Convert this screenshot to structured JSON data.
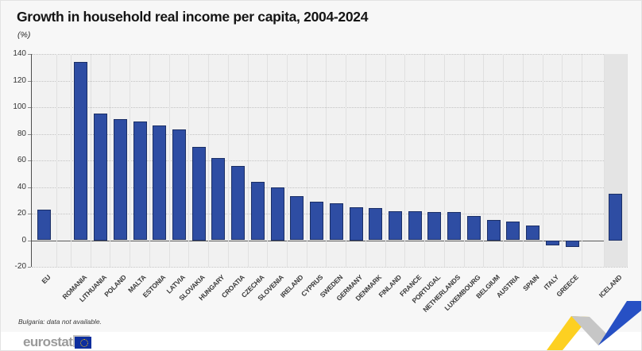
{
  "header": {
    "title": "Growth in household real income per capita, 2004-2024",
    "unit": "(%)"
  },
  "chart_data": {
    "type": "bar",
    "title": "Growth in household real income per capita, 2004-2024",
    "ylabel": "(%)",
    "ylim": [
      -20,
      140
    ],
    "ytick_step": 20,
    "grid": "horizontal-dotted",
    "legend": "none",
    "bar_color": "#2e4da3",
    "bar_border_color": "#1b2f66",
    "highlight_band_color": "#e4e4e4",
    "categories": [
      "EU",
      "ROMANIA",
      "LITHUANIA",
      "POLAND",
      "MALTA",
      "ESTONIA",
      "LATVIA",
      "SLOVAKIA",
      "HUNGARY",
      "CROATIA",
      "CZECHIA",
      "SLOVENIA",
      "IRELAND",
      "CYPRUS",
      "SWEDEN",
      "GERMANY",
      "DENMARK",
      "FINLAND",
      "FRANCE",
      "PORTUGAL",
      "NETHERLANDS",
      "LUXEMBOURG",
      "BELGIUM",
      "AUSTRIA",
      "SPAIN",
      "ITALY",
      "GREECE",
      "ICELAND"
    ],
    "values": [
      23,
      134,
      95,
      91,
      89,
      86,
      83,
      70,
      62,
      56,
      44,
      40,
      33,
      29,
      28,
      25,
      24,
      22,
      22,
      21,
      21,
      18,
      15,
      14,
      11,
      -4,
      -5,
      35
    ],
    "group_breaks_after_index": [
      0,
      26
    ],
    "highlighted_categories": [
      "ICELAND"
    ]
  },
  "footnote": "Bulgaria: data not available.",
  "footer": {
    "logo_text": "eurostat",
    "flag_icon": "eu-flag-icon"
  },
  "colors": {
    "accent_blue": "#2e4da3",
    "ribbon_yellow": "#fdd021",
    "ribbon_gray": "#c6c6c6",
    "ribbon_blue": "#2750c4",
    "plot_background": "#f1f1f1",
    "page_background": "#f7f7f7"
  }
}
